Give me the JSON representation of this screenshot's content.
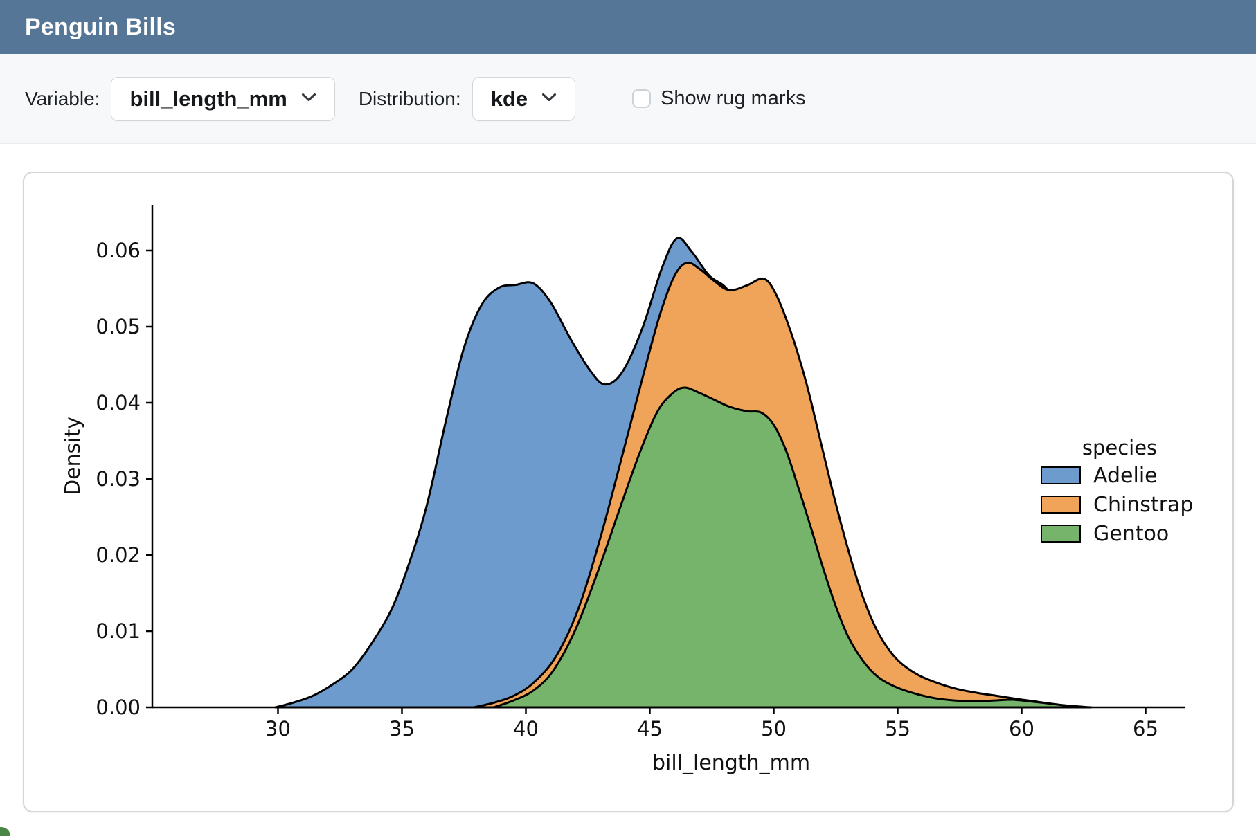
{
  "header": {
    "title": "Penguin Bills"
  },
  "toolbar": {
    "variable_label": "Variable:",
    "variable_value": "bill_length_mm",
    "distribution_label": "Distribution:",
    "distribution_value": "kde",
    "rug_label": "Show rug marks",
    "rug_checked": false
  },
  "chart_data": {
    "type": "area",
    "subtype": "kde-density",
    "title": "",
    "xlabel": "bill_length_mm",
    "ylabel": "Density",
    "x_ticks": [
      30,
      35,
      40,
      45,
      50,
      55,
      60,
      65
    ],
    "y_ticks": [
      0,
      0.01,
      0.02,
      0.03,
      0.04,
      0.05,
      0.06
    ],
    "xlim": [
      24.9,
      66.6
    ],
    "ylim": [
      0,
      0.066
    ],
    "grid": false,
    "legend": {
      "title": "species",
      "position": "right"
    },
    "series": [
      {
        "name": "Adelie",
        "color": "#6d9bcd",
        "points": [
          [
            29.9,
            0
          ],
          [
            30.6,
            0.0006
          ],
          [
            31.4,
            0.0015
          ],
          [
            32.2,
            0.003
          ],
          [
            33,
            0.005
          ],
          [
            33.8,
            0.0085
          ],
          [
            34.6,
            0.013
          ],
          [
            35.3,
            0.019
          ],
          [
            36,
            0.0265
          ],
          [
            36.8,
            0.038
          ],
          [
            37.5,
            0.0472
          ],
          [
            38.2,
            0.0528
          ],
          [
            38.9,
            0.0551
          ],
          [
            39.6,
            0.0555
          ],
          [
            40.3,
            0.0557
          ],
          [
            41,
            0.0532
          ],
          [
            41.8,
            0.0484
          ],
          [
            42.6,
            0.0442
          ],
          [
            43.2,
            0.0424
          ],
          [
            43.9,
            0.0441
          ],
          [
            44.7,
            0.0498
          ],
          [
            45.5,
            0.0578
          ],
          [
            46.1,
            0.0616
          ],
          [
            46.7,
            0.0598
          ],
          [
            47.4,
            0.0567
          ],
          [
            48.1,
            0.055
          ],
          [
            48.8,
            0.0512
          ],
          [
            49.5,
            0.0432
          ],
          [
            50.3,
            0.0322
          ],
          [
            51.1,
            0.0208
          ],
          [
            51.9,
            0.0118
          ],
          [
            52.7,
            0.0057
          ],
          [
            53.5,
            0.0024
          ],
          [
            54.4,
            0.0008
          ],
          [
            55.4,
            0
          ]
        ]
      },
      {
        "name": "Chinstrap",
        "color": "#f0a45a",
        "points": [
          [
            37.9,
            0
          ],
          [
            38.7,
            0.0006
          ],
          [
            39.5,
            0.0015
          ],
          [
            40.3,
            0.0032
          ],
          [
            41.2,
            0.0066
          ],
          [
            42.1,
            0.0128
          ],
          [
            43,
            0.0222
          ],
          [
            43.9,
            0.0332
          ],
          [
            44.7,
            0.0432
          ],
          [
            45.4,
            0.0515
          ],
          [
            46,
            0.0567
          ],
          [
            46.5,
            0.0584
          ],
          [
            47,
            0.0576
          ],
          [
            47.6,
            0.056
          ],
          [
            48.2,
            0.0548
          ],
          [
            48.9,
            0.0554
          ],
          [
            49.6,
            0.0563
          ],
          [
            50.1,
            0.0542
          ],
          [
            50.7,
            0.0492
          ],
          [
            51.3,
            0.0428
          ],
          [
            51.9,
            0.0348
          ],
          [
            52.5,
            0.0268
          ],
          [
            53.1,
            0.0196
          ],
          [
            53.7,
            0.0136
          ],
          [
            54.3,
            0.0093
          ],
          [
            55,
            0.0062
          ],
          [
            55.8,
            0.0043
          ],
          [
            56.6,
            0.0032
          ],
          [
            57.4,
            0.0024
          ],
          [
            58.2,
            0.0019
          ],
          [
            59,
            0.0015
          ],
          [
            59.8,
            0.0011
          ],
          [
            60.7,
            0.0007
          ],
          [
            61.6,
            0.0003
          ],
          [
            62.6,
            0
          ]
        ]
      },
      {
        "name": "Gentoo",
        "color": "#76b46c",
        "points": [
          [
            38.7,
            0
          ],
          [
            39.5,
            0.0009
          ],
          [
            40.3,
            0.0022
          ],
          [
            41.1,
            0.0048
          ],
          [
            42,
            0.0102
          ],
          [
            42.9,
            0.0178
          ],
          [
            43.8,
            0.0262
          ],
          [
            44.6,
            0.0335
          ],
          [
            45.3,
            0.0388
          ],
          [
            45.9,
            0.0412
          ],
          [
            46.4,
            0.042
          ],
          [
            47,
            0.0413
          ],
          [
            47.6,
            0.0404
          ],
          [
            48.2,
            0.0395
          ],
          [
            48.9,
            0.0389
          ],
          [
            49.5,
            0.0387
          ],
          [
            50,
            0.0371
          ],
          [
            50.5,
            0.0337
          ],
          [
            51,
            0.0288
          ],
          [
            51.5,
            0.0236
          ],
          [
            52,
            0.0182
          ],
          [
            52.5,
            0.0133
          ],
          [
            53,
            0.0093
          ],
          [
            53.6,
            0.0061
          ],
          [
            54.2,
            0.004
          ],
          [
            54.9,
            0.0027
          ],
          [
            55.7,
            0.0018
          ],
          [
            56.5,
            0.0012
          ],
          [
            57.3,
            0.0009
          ],
          [
            58.1,
            0.0008
          ],
          [
            58.9,
            0.0009
          ],
          [
            59.6,
            0.001
          ],
          [
            60.3,
            0.0008
          ],
          [
            61.1,
            0.0005
          ],
          [
            61.9,
            0.0002
          ],
          [
            62.8,
            0
          ]
        ]
      }
    ]
  }
}
